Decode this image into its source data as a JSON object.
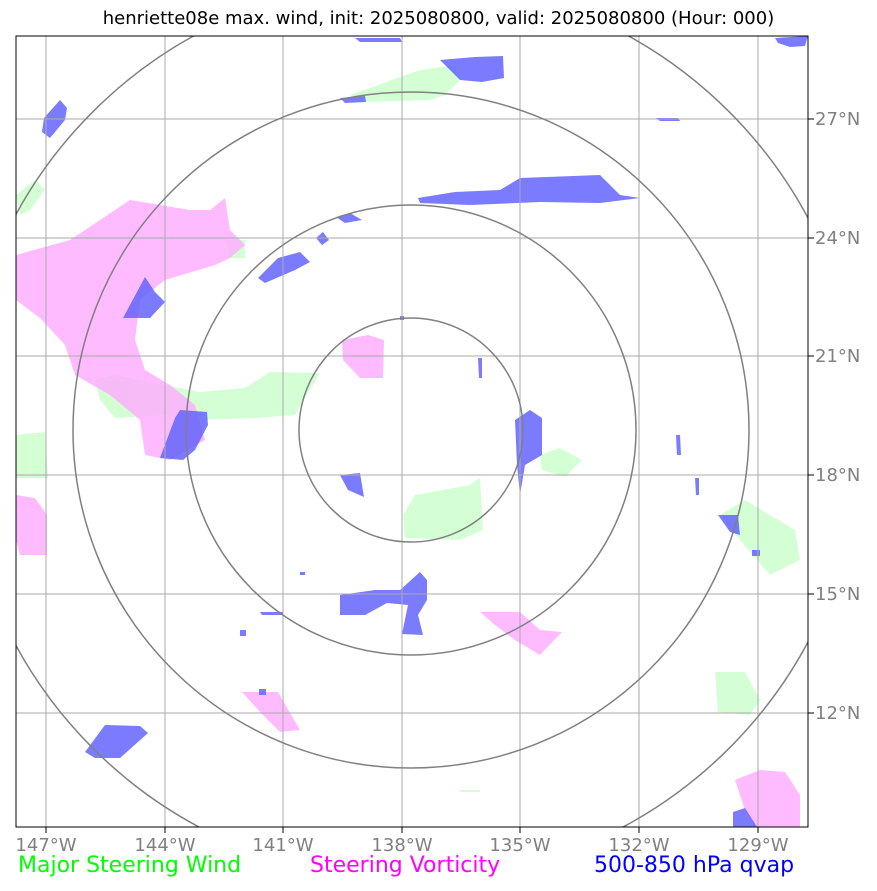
{
  "title": "henriette08e max. wind, init: 2025080800, valid: 2025080800 (Hour: 000)",
  "lon_labels": [
    "147°W",
    "144°W",
    "141°W",
    "138°W",
    "135°W",
    "132°W",
    "129°W"
  ],
  "lat_labels": [
    "27°N",
    "24°N",
    "21°N",
    "18°N",
    "15°N",
    "12°N"
  ],
  "legend": [
    {
      "label": "Major Steering Wind",
      "color": "#00ff00"
    },
    {
      "label": "Steering Vorticity",
      "color": "#ff00ff"
    },
    {
      "label": "500-850 hPa qvap",
      "color": "#0000ff"
    }
  ],
  "colors": {
    "wind_fill": "#ccffcc",
    "vorticity_fill": "#ffaaff",
    "qvap_fill": "#6464ff",
    "grid": "#aaaaaa",
    "rings": "#808080",
    "tick_labels": "#808080"
  }
}
